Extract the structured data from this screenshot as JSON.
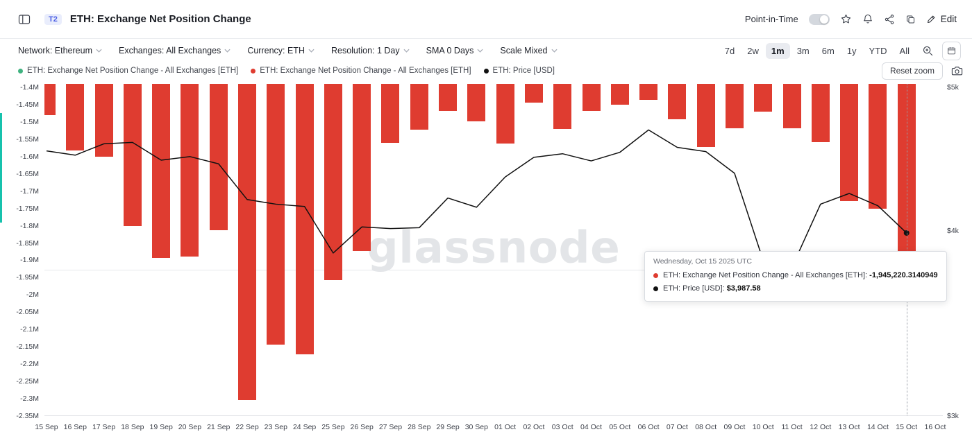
{
  "header": {
    "badge": "T2",
    "title": "ETH: Exchange Net Position Change",
    "point_in_time_label": "Point-in-Time",
    "edit_label": "Edit"
  },
  "filters": [
    {
      "key": "network",
      "label": "Network: Ethereum"
    },
    {
      "key": "exchanges",
      "label": "Exchanges: All Exchanges"
    },
    {
      "key": "currency",
      "label": "Currency: ETH"
    },
    {
      "key": "resolution",
      "label": "Resolution: 1 Day"
    },
    {
      "key": "sma",
      "label": "SMA 0 Days"
    },
    {
      "key": "scale",
      "label": "Scale Mixed"
    }
  ],
  "ranges": {
    "options": [
      "7d",
      "2w",
      "1m",
      "3m",
      "6m",
      "1y",
      "YTD",
      "All"
    ],
    "active": "1m"
  },
  "legend": [
    {
      "color": "#3fb27f",
      "label": "ETH: Exchange Net Position Change - All Exchanges [ETH]"
    },
    {
      "color": "#df3c30",
      "label": "ETH: Exchange Net Position Change - All Exchanges [ETH]"
    },
    {
      "color": "#111111",
      "label": "ETH: Price [USD]"
    }
  ],
  "chart": {
    "reset_zoom_label": "Reset zoom",
    "watermark": "glassnode"
  },
  "tooltip": {
    "title": "Wednesday, Oct 15 2025 UTC",
    "rows": [
      {
        "color": "#df3c30",
        "label": "ETH: Exchange Net Position Change - All Exchanges [ETH]:",
        "value": "-1,945,220.3140949"
      },
      {
        "color": "#111111",
        "label": "ETH: Price [USD]:",
        "value": "$3,987.58"
      }
    ]
  },
  "icons": [
    "sidebar-toggle-icon",
    "star-icon",
    "bell-icon",
    "share-icon",
    "copy-icon",
    "pencil-icon",
    "chevron-down-icon",
    "box-zoom-icon",
    "calendar-icon",
    "camera-icon"
  ],
  "chart_data": {
    "type": "bar+line",
    "title": "ETH: Exchange Net Position Change",
    "categories": [
      "15 Sep",
      "16 Sep",
      "17 Sep",
      "18 Sep",
      "19 Sep",
      "20 Sep",
      "21 Sep",
      "22 Sep",
      "23 Sep",
      "24 Sep",
      "25 Sep",
      "26 Sep",
      "27 Sep",
      "28 Sep",
      "29 Sep",
      "30 Sep",
      "01 Oct",
      "02 Oct",
      "03 Oct",
      "04 Oct",
      "05 Oct",
      "06 Oct",
      "07 Oct",
      "08 Oct",
      "09 Oct",
      "10 Oct",
      "11 Oct",
      "12 Oct",
      "13 Oct",
      "14 Oct",
      "15 Oct",
      "16 Oct"
    ],
    "series": [
      {
        "name": "ETH: Exchange Net Position Change - All Exchanges [ETH]",
        "type": "bar",
        "color": "#df3c30",
        "values": [
          -1480000,
          -1583000,
          -1600000,
          -1800000,
          -1893000,
          -1890000,
          -1812000,
          -2303000,
          -2143000,
          -2172000,
          -1957000,
          -1872000,
          -1560000,
          -1523000,
          -1468000,
          -1498000,
          -1563000,
          -1444000,
          -1520000,
          -1468000,
          -1450000,
          -1436000,
          -1492000,
          -1572000,
          -1518000,
          -1470000,
          -1518000,
          -1558000,
          -1729000,
          -1750000,
          -1945220.3140949
        ]
      },
      {
        "name": "ETH: Price [USD]",
        "type": "line",
        "color": "#111111",
        "scale": "log",
        "values": [
          4530,
          4500,
          4580,
          4590,
          4465,
          4490,
          4440,
          4200,
          4170,
          4155,
          3865,
          4025,
          4015,
          4020,
          4210,
          4150,
          4350,
          4485,
          4510,
          4460,
          4520,
          4680,
          4555,
          4525,
          4375,
          3820,
          3780,
          4170,
          4240,
          4160,
          3987.58
        ]
      }
    ],
    "left_axis": {
      "min": -2350000,
      "max": -1400000,
      "ticks": [
        "-1.4M",
        "-1.45M",
        "-1.5M",
        "-1.55M",
        "-1.6M",
        "-1.65M",
        "-1.7M",
        "-1.75M",
        "-1.8M",
        "-1.85M",
        "-1.9M",
        "-1.95M",
        "-2M",
        "-2.05M",
        "-2.1M",
        "-2.15M",
        "-2.2M",
        "-2.25M",
        "-2.3M",
        "-2.35M"
      ]
    },
    "right_axis": {
      "scale": "log",
      "min": 3000,
      "max": 5000,
      "ticks": [
        {
          "label": "$5k",
          "value": 5000
        },
        {
          "label": "$4k",
          "value": 4000
        },
        {
          "label": "$3k",
          "value": 3000
        }
      ]
    },
    "highlight_index": 30,
    "grid": false,
    "legend_position": "top-left"
  }
}
